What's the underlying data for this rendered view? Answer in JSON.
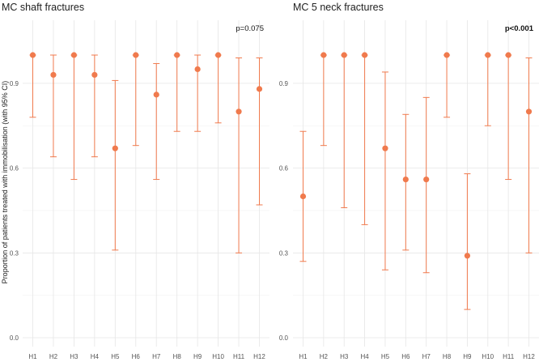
{
  "chart_data": [
    {
      "type": "scatter",
      "title": "MC shaft fractures",
      "annotation": "p=0.075",
      "annotation_bold": false,
      "ylabel": "Proportion of patients treated with immobilisation (with 95% CI)",
      "xlabel": "",
      "ylim": [
        0.0,
        1.0
      ],
      "yticks": [
        0.0,
        0.3,
        0.6,
        0.9
      ],
      "ytick_labels": [
        "0.0",
        "0.3",
        "0.6",
        "0.9"
      ],
      "grid": true,
      "series_color": "#F07A4D",
      "categories": [
        "H1",
        "H2",
        "H3",
        "H4",
        "H5",
        "H6",
        "H7",
        "H8",
        "H9",
        "H10",
        "H11",
        "H12"
      ],
      "values": [
        1.0,
        0.93,
        1.0,
        0.93,
        0.67,
        1.0,
        0.86,
        1.0,
        0.95,
        1.0,
        0.8,
        0.88
      ],
      "ci_low": [
        0.78,
        0.64,
        0.56,
        0.64,
        0.31,
        0.68,
        0.56,
        0.73,
        0.73,
        0.76,
        0.3,
        0.47
      ],
      "ci_high": [
        1.0,
        1.0,
        1.0,
        1.0,
        0.91,
        1.0,
        0.97,
        1.0,
        1.0,
        1.0,
        0.99,
        0.99
      ]
    },
    {
      "type": "scatter",
      "title": "MC 5 neck fractures",
      "annotation": "p<0.001",
      "annotation_bold": true,
      "ylabel": "",
      "xlabel": "",
      "ylim": [
        0.0,
        1.0
      ],
      "yticks": [
        0.0,
        0.3,
        0.6,
        0.9
      ],
      "ytick_labels": [
        "0.0",
        "0.3",
        "0.6",
        "0.9"
      ],
      "grid": true,
      "series_color": "#F07A4D",
      "categories": [
        "H1",
        "H2",
        "H3",
        "H4",
        "H5",
        "H6",
        "H7",
        "H8",
        "H9",
        "H10",
        "H11",
        "H12"
      ],
      "values": [
        0.5,
        1.0,
        1.0,
        1.0,
        0.67,
        0.56,
        0.56,
        1.0,
        0.29,
        1.0,
        1.0,
        0.8
      ],
      "ci_low": [
        0.27,
        0.68,
        0.46,
        0.4,
        0.24,
        0.31,
        0.23,
        0.78,
        0.1,
        0.75,
        0.56,
        0.3
      ],
      "ci_high": [
        0.73,
        1.0,
        1.0,
        1.0,
        0.94,
        0.79,
        0.85,
        1.0,
        0.58,
        1.0,
        1.0,
        0.99
      ]
    }
  ]
}
